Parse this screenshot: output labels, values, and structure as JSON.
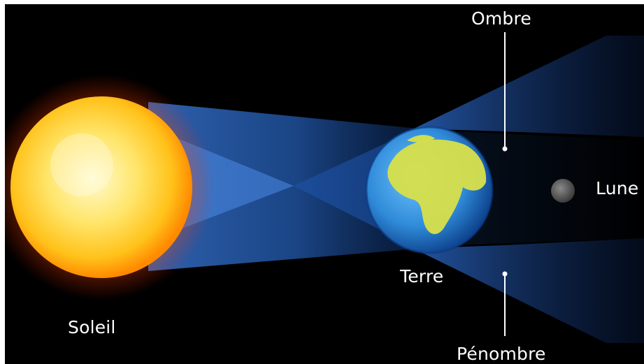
{
  "labels": {
    "sun": "Soleil",
    "earth": "Terre",
    "moon": "Lune",
    "umbra": "Ombre",
    "penumbra": "Pénombre"
  },
  "colors": {
    "background": "#000000",
    "light_cone": "#2a67c8",
    "sun_core": "#fff3a0",
    "sun_edge": "#ff8a00",
    "earth_ocean": "#2f8ad8",
    "earth_land": "#d8e04a",
    "moon": "#6b6b6b",
    "text": "#ffffff"
  },
  "icons": {
    "sun": "sun-icon",
    "earth": "earth-icon",
    "moon": "moon-icon"
  }
}
